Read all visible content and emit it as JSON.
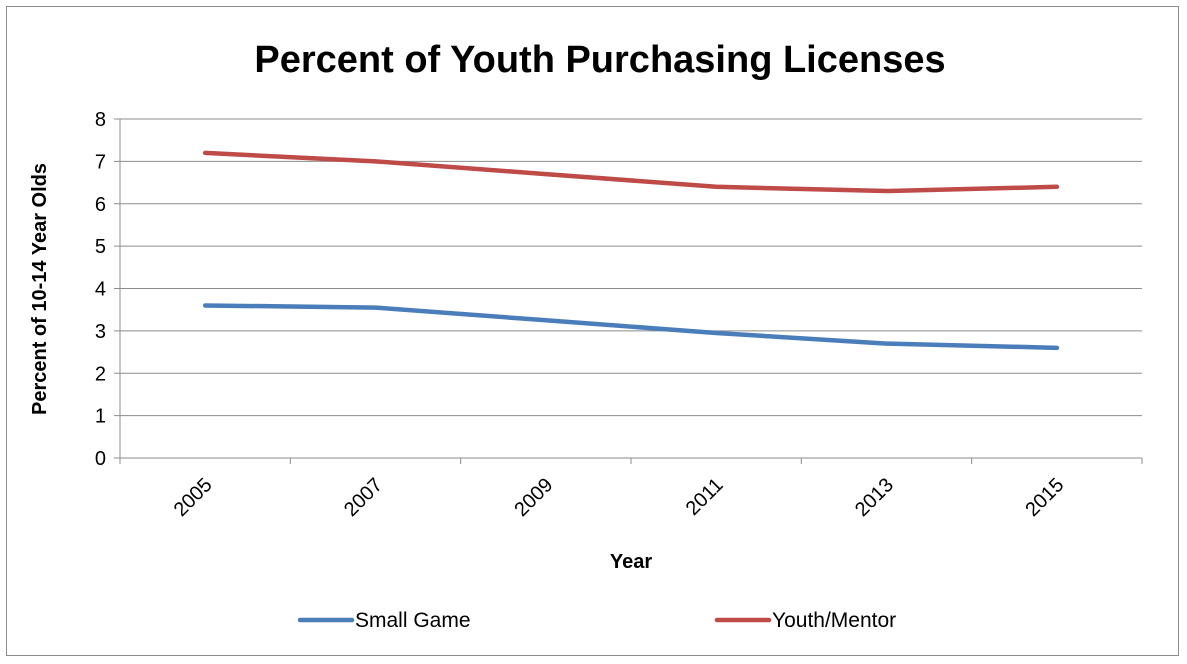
{
  "chart_data": {
    "type": "line",
    "title": "Percent of Youth Purchasing Licenses",
    "xlabel": "Year",
    "ylabel": "Percent of 10-14 Year Olds",
    "categories": [
      "2005",
      "2007",
      "2009",
      "2011",
      "2013",
      "2015"
    ],
    "ylim": [
      0,
      8
    ],
    "yticks": [
      "0",
      "1",
      "2",
      "3",
      "4",
      "5",
      "6",
      "7",
      "8"
    ],
    "grid": true,
    "legend_position": "bottom",
    "series": [
      {
        "name": "Small Game",
        "color": "#4a7ebb",
        "values": [
          3.6,
          3.55,
          3.25,
          2.95,
          2.7,
          2.6
        ]
      },
      {
        "name": "Youth/Mentor",
        "color": "#be4b48",
        "values": [
          7.2,
          7.0,
          6.7,
          6.4,
          6.3,
          6.4
        ]
      }
    ]
  }
}
